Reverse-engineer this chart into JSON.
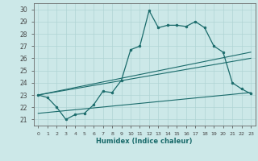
{
  "xlabel": "Humidex (Indice chaleur)",
  "background_color": "#cce8e8",
  "grid_color": "#b0d4d4",
  "line_color": "#1a6b6b",
  "xlim": [
    -0.5,
    23.5
  ],
  "ylim": [
    20.5,
    30.5
  ],
  "xticks": [
    0,
    1,
    2,
    3,
    4,
    5,
    6,
    7,
    8,
    9,
    10,
    11,
    12,
    13,
    14,
    15,
    16,
    17,
    18,
    19,
    20,
    21,
    22,
    23
  ],
  "yticks": [
    21,
    22,
    23,
    24,
    25,
    26,
    27,
    28,
    29,
    30
  ],
  "curve_x": [
    0,
    1,
    2,
    3,
    4,
    5,
    6,
    7,
    8,
    9,
    10,
    11,
    12,
    13,
    14,
    15,
    16,
    17,
    18,
    19,
    20,
    21,
    22,
    23
  ],
  "curve_y": [
    23.0,
    22.8,
    22.0,
    21.0,
    21.4,
    21.5,
    22.2,
    23.3,
    23.2,
    24.2,
    26.7,
    27.0,
    29.9,
    28.5,
    28.7,
    28.7,
    28.6,
    29.0,
    28.5,
    27.0,
    26.5,
    24.0,
    23.5,
    23.1
  ],
  "line1_x": [
    0,
    23
  ],
  "line1_y": [
    23.0,
    26.5
  ],
  "line2_x": [
    0,
    23
  ],
  "line2_y": [
    23.0,
    26.0
  ],
  "line3_x": [
    0,
    23
  ],
  "line3_y": [
    21.5,
    23.2
  ]
}
